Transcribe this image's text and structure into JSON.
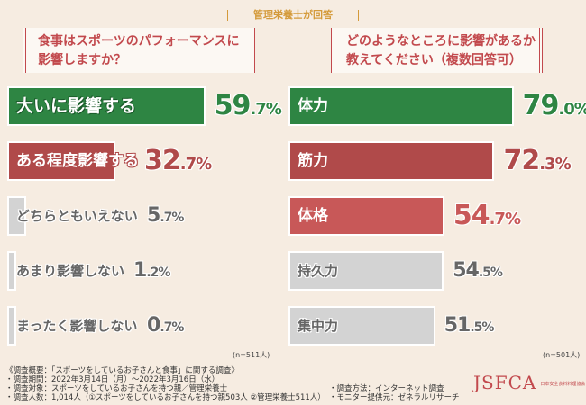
{
  "header": {
    "title": "管理栄養士が回答"
  },
  "colors": {
    "green": "#2e8543",
    "red": "#b04a4a",
    "lightred": "#c85858",
    "grey": "#d3d3d3"
  },
  "chart_data": [
    {
      "type": "bar",
      "title": "食事はスポーツのパフォーマンスに影響しますか？",
      "categories": [
        "大いに影響する",
        "ある程度影響する",
        "どちらともいえない",
        "あまり影響しない",
        "まったく影響しない"
      ],
      "values": [
        59.7,
        32.7,
        5.7,
        1.2,
        0.7
      ],
      "unit": "%",
      "note": "(n=511人)"
    },
    {
      "type": "bar",
      "title": "どのようなところに影響があるか教えてください（複数回答可）",
      "categories": [
        "体力",
        "筋力",
        "体格",
        "持久力",
        "集中力"
      ],
      "values": [
        79.0,
        72.3,
        54.7,
        54.5,
        51.5
      ],
      "unit": "%",
      "note": "(n=501人)"
    }
  ],
  "questions": {
    "left_line1": "食事はスポーツのパフォーマンスに",
    "left_line2": "影響しますか？",
    "right_line1": "どのようなところに影響があるか",
    "right_line2": "教えてください（複数回答可）"
  },
  "footer": {
    "lines": [
      "《調査概要：「スポーツをしているお子さんと食事」に関する調査》",
      "・調査期間：2022年3月14日（月）～2022年3月16日（水）",
      "・調査対象：スポーツをしているお子さんを持つ親／管理栄養士",
      "・調査人数：1,014人（①スポーツをしているお子さんを持つ親503人 ②管理栄養士511人）"
    ],
    "method": "・調査方法：インターネット調査",
    "provider": "・モニター提供元：ゼネラルリサーチ",
    "logo": "JSFCA",
    "logo_sub": "日本安全食料料理協会"
  }
}
